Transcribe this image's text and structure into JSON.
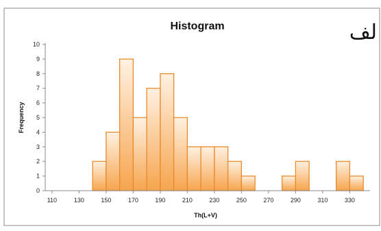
{
  "side_text": "لف",
  "chart_data": {
    "type": "bar",
    "title": "Histogram",
    "xlabel": "Th(L+V)",
    "ylabel": "Frequency",
    "ylim": [
      0,
      10
    ],
    "xlim": [
      105,
      345
    ],
    "bin_width": 10,
    "grid": false,
    "legend": "none",
    "colors": {
      "bar_top": "#fff1e2",
      "bar_bottom": "#f6a54e",
      "bar_stroke": "#e98a2c",
      "axis": "#888888",
      "border": "#8a8a8a"
    },
    "x_ticks": [
      110,
      130,
      150,
      170,
      190,
      210,
      230,
      250,
      270,
      290,
      310,
      330
    ],
    "y_ticks": [
      0,
      1,
      2,
      3,
      4,
      5,
      6,
      7,
      8,
      9,
      10
    ],
    "bins": [
      {
        "x": 145,
        "value": 2
      },
      {
        "x": 155,
        "value": 4
      },
      {
        "x": 165,
        "value": 9
      },
      {
        "x": 175,
        "value": 5
      },
      {
        "x": 185,
        "value": 7
      },
      {
        "x": 195,
        "value": 8
      },
      {
        "x": 205,
        "value": 5
      },
      {
        "x": 215,
        "value": 3
      },
      {
        "x": 225,
        "value": 3
      },
      {
        "x": 235,
        "value": 3
      },
      {
        "x": 245,
        "value": 2
      },
      {
        "x": 255,
        "value": 1
      },
      {
        "x": 285,
        "value": 1
      },
      {
        "x": 295,
        "value": 2
      },
      {
        "x": 325,
        "value": 2
      },
      {
        "x": 335,
        "value": 1
      }
    ]
  }
}
